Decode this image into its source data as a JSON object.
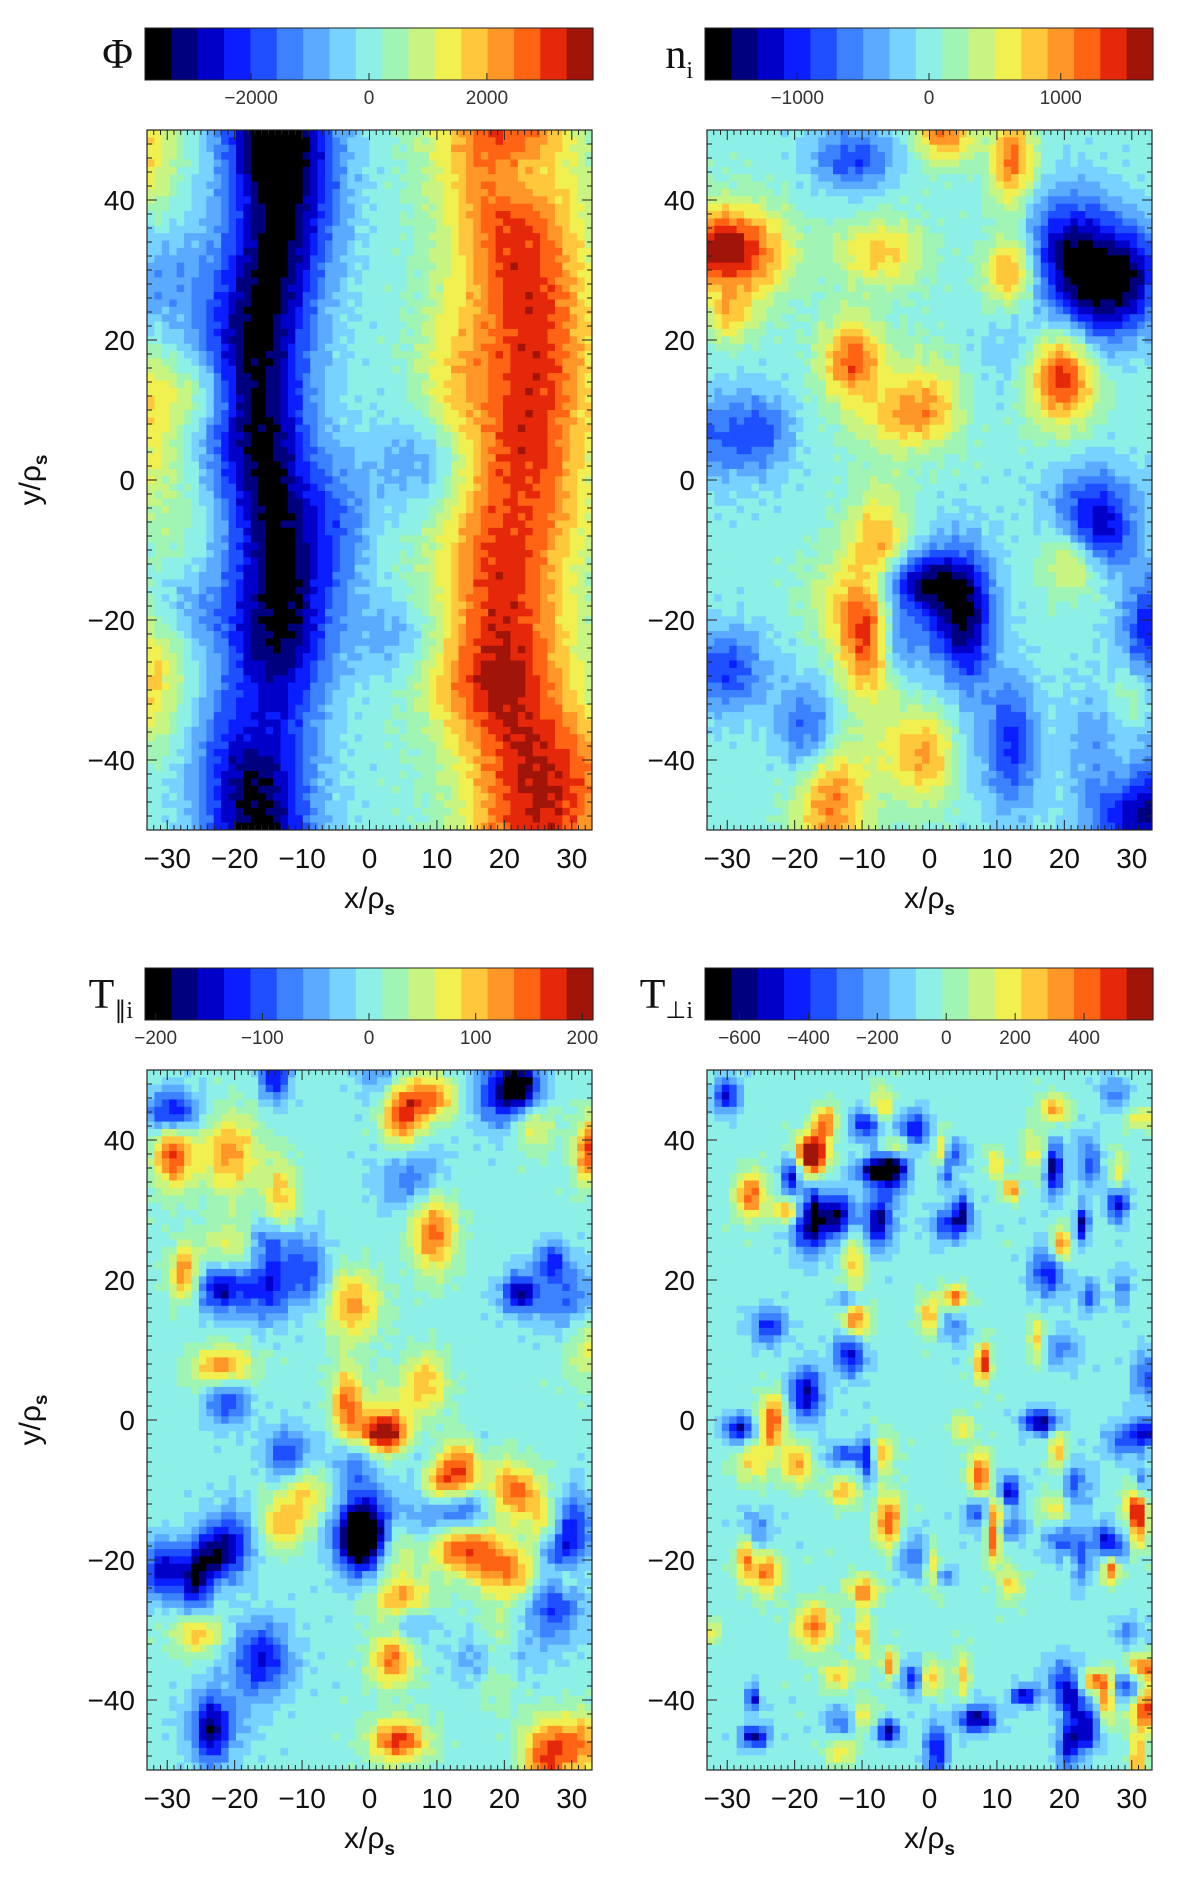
{
  "chart_data": [
    {
      "type": "heatmap",
      "id": "phi",
      "field_label": "Φ",
      "field_sub": "",
      "xlabel": "x/ρ",
      "xlabel_sub": "s",
      "ylabel": "y/ρ",
      "ylabel_sub": "s",
      "xlim": [
        -33,
        33
      ],
      "ylim": [
        -50,
        50
      ],
      "xticks": [
        -30,
        -20,
        -10,
        0,
        10,
        20,
        30
      ],
      "yticks": [
        -40,
        -20,
        0,
        20,
        40
      ],
      "cbar_range": [
        -3800,
        3800
      ],
      "cbar_ticks": [
        {
          "value": -2000,
          "label": "−2000"
        },
        {
          "value": 0,
          "label": "0"
        },
        {
          "value": 2000,
          "label": "2000"
        }
      ],
      "style": "phi"
    },
    {
      "type": "heatmap",
      "id": "ni",
      "field_label": "n",
      "field_sub": "i",
      "xlabel": "x/ρ",
      "xlabel_sub": "s",
      "ylabel": "",
      "ylabel_sub": "",
      "xlim": [
        -33,
        33
      ],
      "ylim": [
        -50,
        50
      ],
      "xticks": [
        -30,
        -20,
        -10,
        0,
        10,
        20,
        30
      ],
      "yticks": [
        -40,
        -20,
        0,
        20,
        40
      ],
      "cbar_range": [
        -1700,
        1700
      ],
      "cbar_ticks": [
        {
          "value": -1000,
          "label": "−1000"
        },
        {
          "value": 0,
          "label": "0"
        },
        {
          "value": 1000,
          "label": "1000"
        }
      ],
      "style": "blobs"
    },
    {
      "type": "heatmap",
      "id": "tpar",
      "field_label": "T",
      "field_sub": "∥i",
      "xlabel": "x/ρ",
      "xlabel_sub": "s",
      "ylabel": "y/ρ",
      "ylabel_sub": "s",
      "xlim": [
        -33,
        33
      ],
      "ylim": [
        -50,
        50
      ],
      "xticks": [
        -30,
        -20,
        -10,
        0,
        10,
        20,
        30
      ],
      "yticks": [
        -40,
        -20,
        0,
        20,
        40
      ],
      "cbar_range": [
        -210,
        210
      ],
      "cbar_ticks": [
        {
          "value": -200,
          "label": "−200"
        },
        {
          "value": -100,
          "label": "−100"
        },
        {
          "value": 0,
          "label": "0"
        },
        {
          "value": 100,
          "label": "100"
        },
        {
          "value": 200,
          "label": "200"
        }
      ],
      "style": "fine"
    },
    {
      "type": "heatmap",
      "id": "tperp",
      "field_label": "T",
      "field_sub": "⊥i",
      "xlabel": "x/ρ",
      "xlabel_sub": "s",
      "ylabel": "",
      "ylabel_sub": "",
      "xlim": [
        -33,
        33
      ],
      "ylim": [
        -50,
        50
      ],
      "xticks": [
        -30,
        -20,
        -10,
        0,
        10,
        20,
        30
      ],
      "yticks": [
        -40,
        -20,
        0,
        20,
        40
      ],
      "cbar_range": [
        -700,
        600
      ],
      "cbar_ticks": [
        {
          "value": -600,
          "label": "−600"
        },
        {
          "value": -400,
          "label": "−400"
        },
        {
          "value": -200,
          "label": "−200"
        },
        {
          "value": 0,
          "label": "0"
        },
        {
          "value": 200,
          "label": "200"
        },
        {
          "value": 400,
          "label": "400"
        }
      ],
      "style": "speckle"
    }
  ],
  "colors": {
    "colormap": [
      "#000000",
      "#00007f",
      "#0000c8",
      "#0a1eff",
      "#1e50ff",
      "#3c82ff",
      "#5aaaff",
      "#78d2ff",
      "#8cf0e6",
      "#a0f5b4",
      "#c8f582",
      "#f0f050",
      "#ffc83c",
      "#ff9628",
      "#ff6414",
      "#e6280a",
      "#a0140a"
    ]
  }
}
